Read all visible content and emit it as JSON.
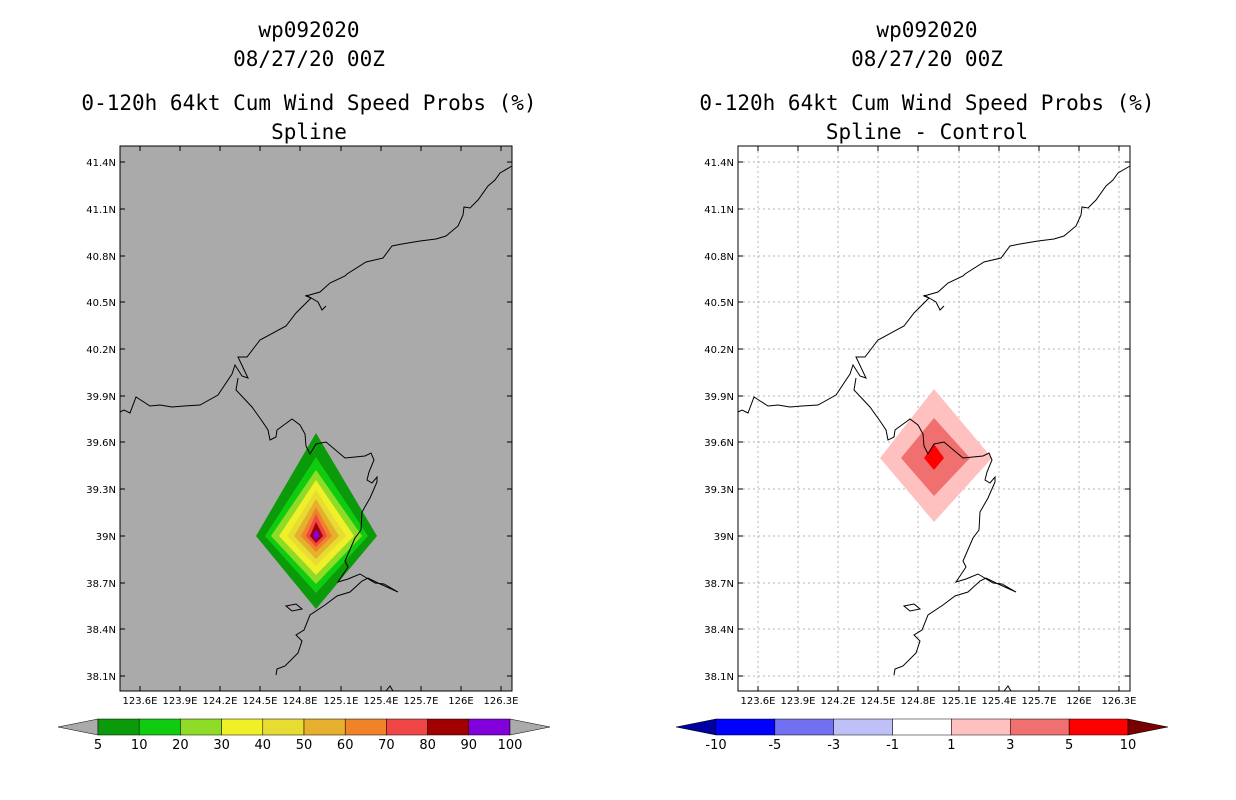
{
  "panels": [
    {
      "storm_id": "wp092020",
      "datetime": "08/27/20 00Z",
      "product": "0-120h 64kt Cum Wind Speed Probs (%)",
      "subtitle": "Spline",
      "background": "#aaaaaa",
      "lat_ticks": [
        "41.4N",
        "41.1N",
        "40.8N",
        "40.5N",
        "40.2N",
        "39.9N",
        "39.6N",
        "39.3N",
        "39N",
        "38.7N",
        "38.4N",
        "38.1N"
      ],
      "lon_ticks": [
        "123.6E",
        "123.9E",
        "124.2E",
        "124.5E",
        "124.8E",
        "125.1E",
        "125.4E",
        "125.7E",
        "126E",
        "126.3E"
      ],
      "colorbar": {
        "labels": [
          "5",
          "10",
          "20",
          "30",
          "40",
          "50",
          "60",
          "70",
          "80",
          "90",
          "100"
        ],
        "colors": [
          "#aaaaaa",
          "#0a9a0a",
          "#0fcc0f",
          "#8fdc28",
          "#f0f028",
          "#e6dc32",
          "#e6af2d",
          "#f08228",
          "#f04646",
          "#a00000",
          "#8200dc",
          "#aaaaaa"
        ]
      }
    },
    {
      "storm_id": "wp092020",
      "datetime": "08/27/20 00Z",
      "product": "0-120h 64kt Cum Wind Speed Probs (%)",
      "subtitle": "Spline - Control",
      "background": "#ffffff",
      "lat_ticks": [
        "41.4N",
        "41.1N",
        "40.8N",
        "40.5N",
        "40.2N",
        "39.9N",
        "39.6N",
        "39.3N",
        "39N",
        "38.7N",
        "38.4N",
        "38.1N"
      ],
      "lon_ticks": [
        "123.6E",
        "123.9E",
        "124.2E",
        "124.5E",
        "124.8E",
        "125.1E",
        "125.4E",
        "125.7E",
        "126E",
        "126.3E"
      ],
      "colorbar": {
        "labels": [
          "-10",
          "-5",
          "-3",
          "-1",
          "1",
          "3",
          "5",
          "10"
        ],
        "colors": [
          "#0000a0",
          "#0000ff",
          "#7070f0",
          "#c0c0f8",
          "#ffffff",
          "#ffc0c0",
          "#f07070",
          "#ff0000",
          "#780000"
        ]
      }
    }
  ]
}
